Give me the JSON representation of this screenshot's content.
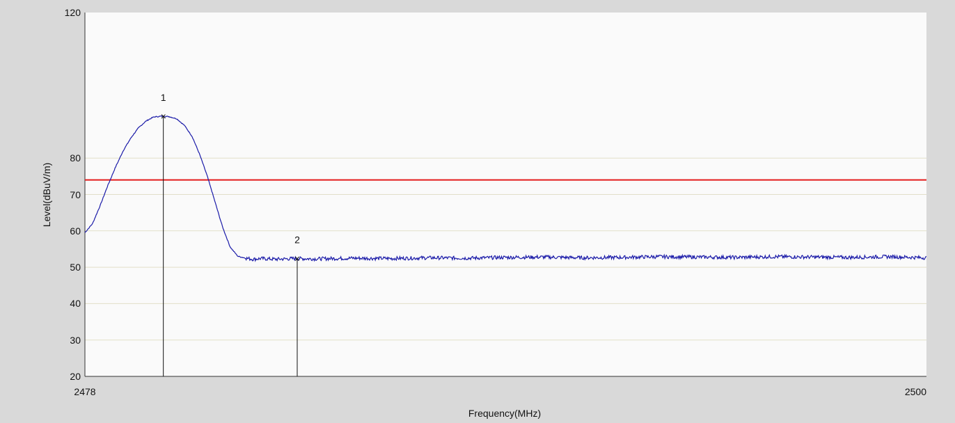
{
  "chart_data": {
    "type": "line",
    "xlabel": "Frequency(MHz)",
    "ylabel": "Level(dBuV/m)",
    "xlim": [
      2478,
      2500
    ],
    "ylim": [
      20,
      120
    ],
    "x_tick_labels": [
      "2478",
      "2500"
    ],
    "y_tick_labels": [
      "20",
      "30",
      "40",
      "50",
      "60",
      "70",
      "80",
      "120"
    ],
    "grid": true,
    "series": [
      {
        "color": "#1a1aa8",
        "x": [
          2478.0,
          2478.2,
          2478.4,
          2478.6,
          2478.8,
          2479.0,
          2479.2,
          2479.4,
          2479.6,
          2479.8,
          2480.0,
          2480.2,
          2480.4,
          2480.6,
          2480.8,
          2481.0,
          2481.2,
          2481.4,
          2481.6,
          2481.8,
          2482.0,
          2482.2,
          2482.4,
          2482.6,
          2482.8,
          2483.0,
          2483.5,
          2484.0,
          2485.0,
          2486.0,
          2487.0,
          2488.0,
          2489.0,
          2490.0,
          2491.0,
          2492.0,
          2493.0,
          2494.0,
          2495.0,
          2496.0,
          2497.0,
          2498.0,
          2499.0,
          2500.0
        ],
        "y": [
          59.5,
          62.0,
          67.0,
          72.5,
          77.5,
          82.0,
          85.5,
          88.3,
          90.2,
          91.3,
          91.5,
          91.4,
          90.8,
          89.0,
          86.0,
          81.0,
          75.0,
          68.0,
          61.0,
          55.5,
          53.0,
          52.5,
          52.2,
          52.4,
          52.3,
          52.2,
          52.4,
          52.3,
          52.5,
          52.4,
          52.6,
          52.5,
          52.7,
          52.8,
          52.6,
          52.7,
          52.9,
          52.8,
          52.7,
          52.9,
          52.8,
          52.7,
          52.9,
          52.6
        ]
      }
    ],
    "limit_line": {
      "y": 74,
      "color": "#e31a1a"
    },
    "markers": [
      {
        "label": "1",
        "x": 2480.05,
        "y": 91.5
      },
      {
        "label": "2",
        "x": 2483.55,
        "y": 52.4
      }
    ]
  }
}
